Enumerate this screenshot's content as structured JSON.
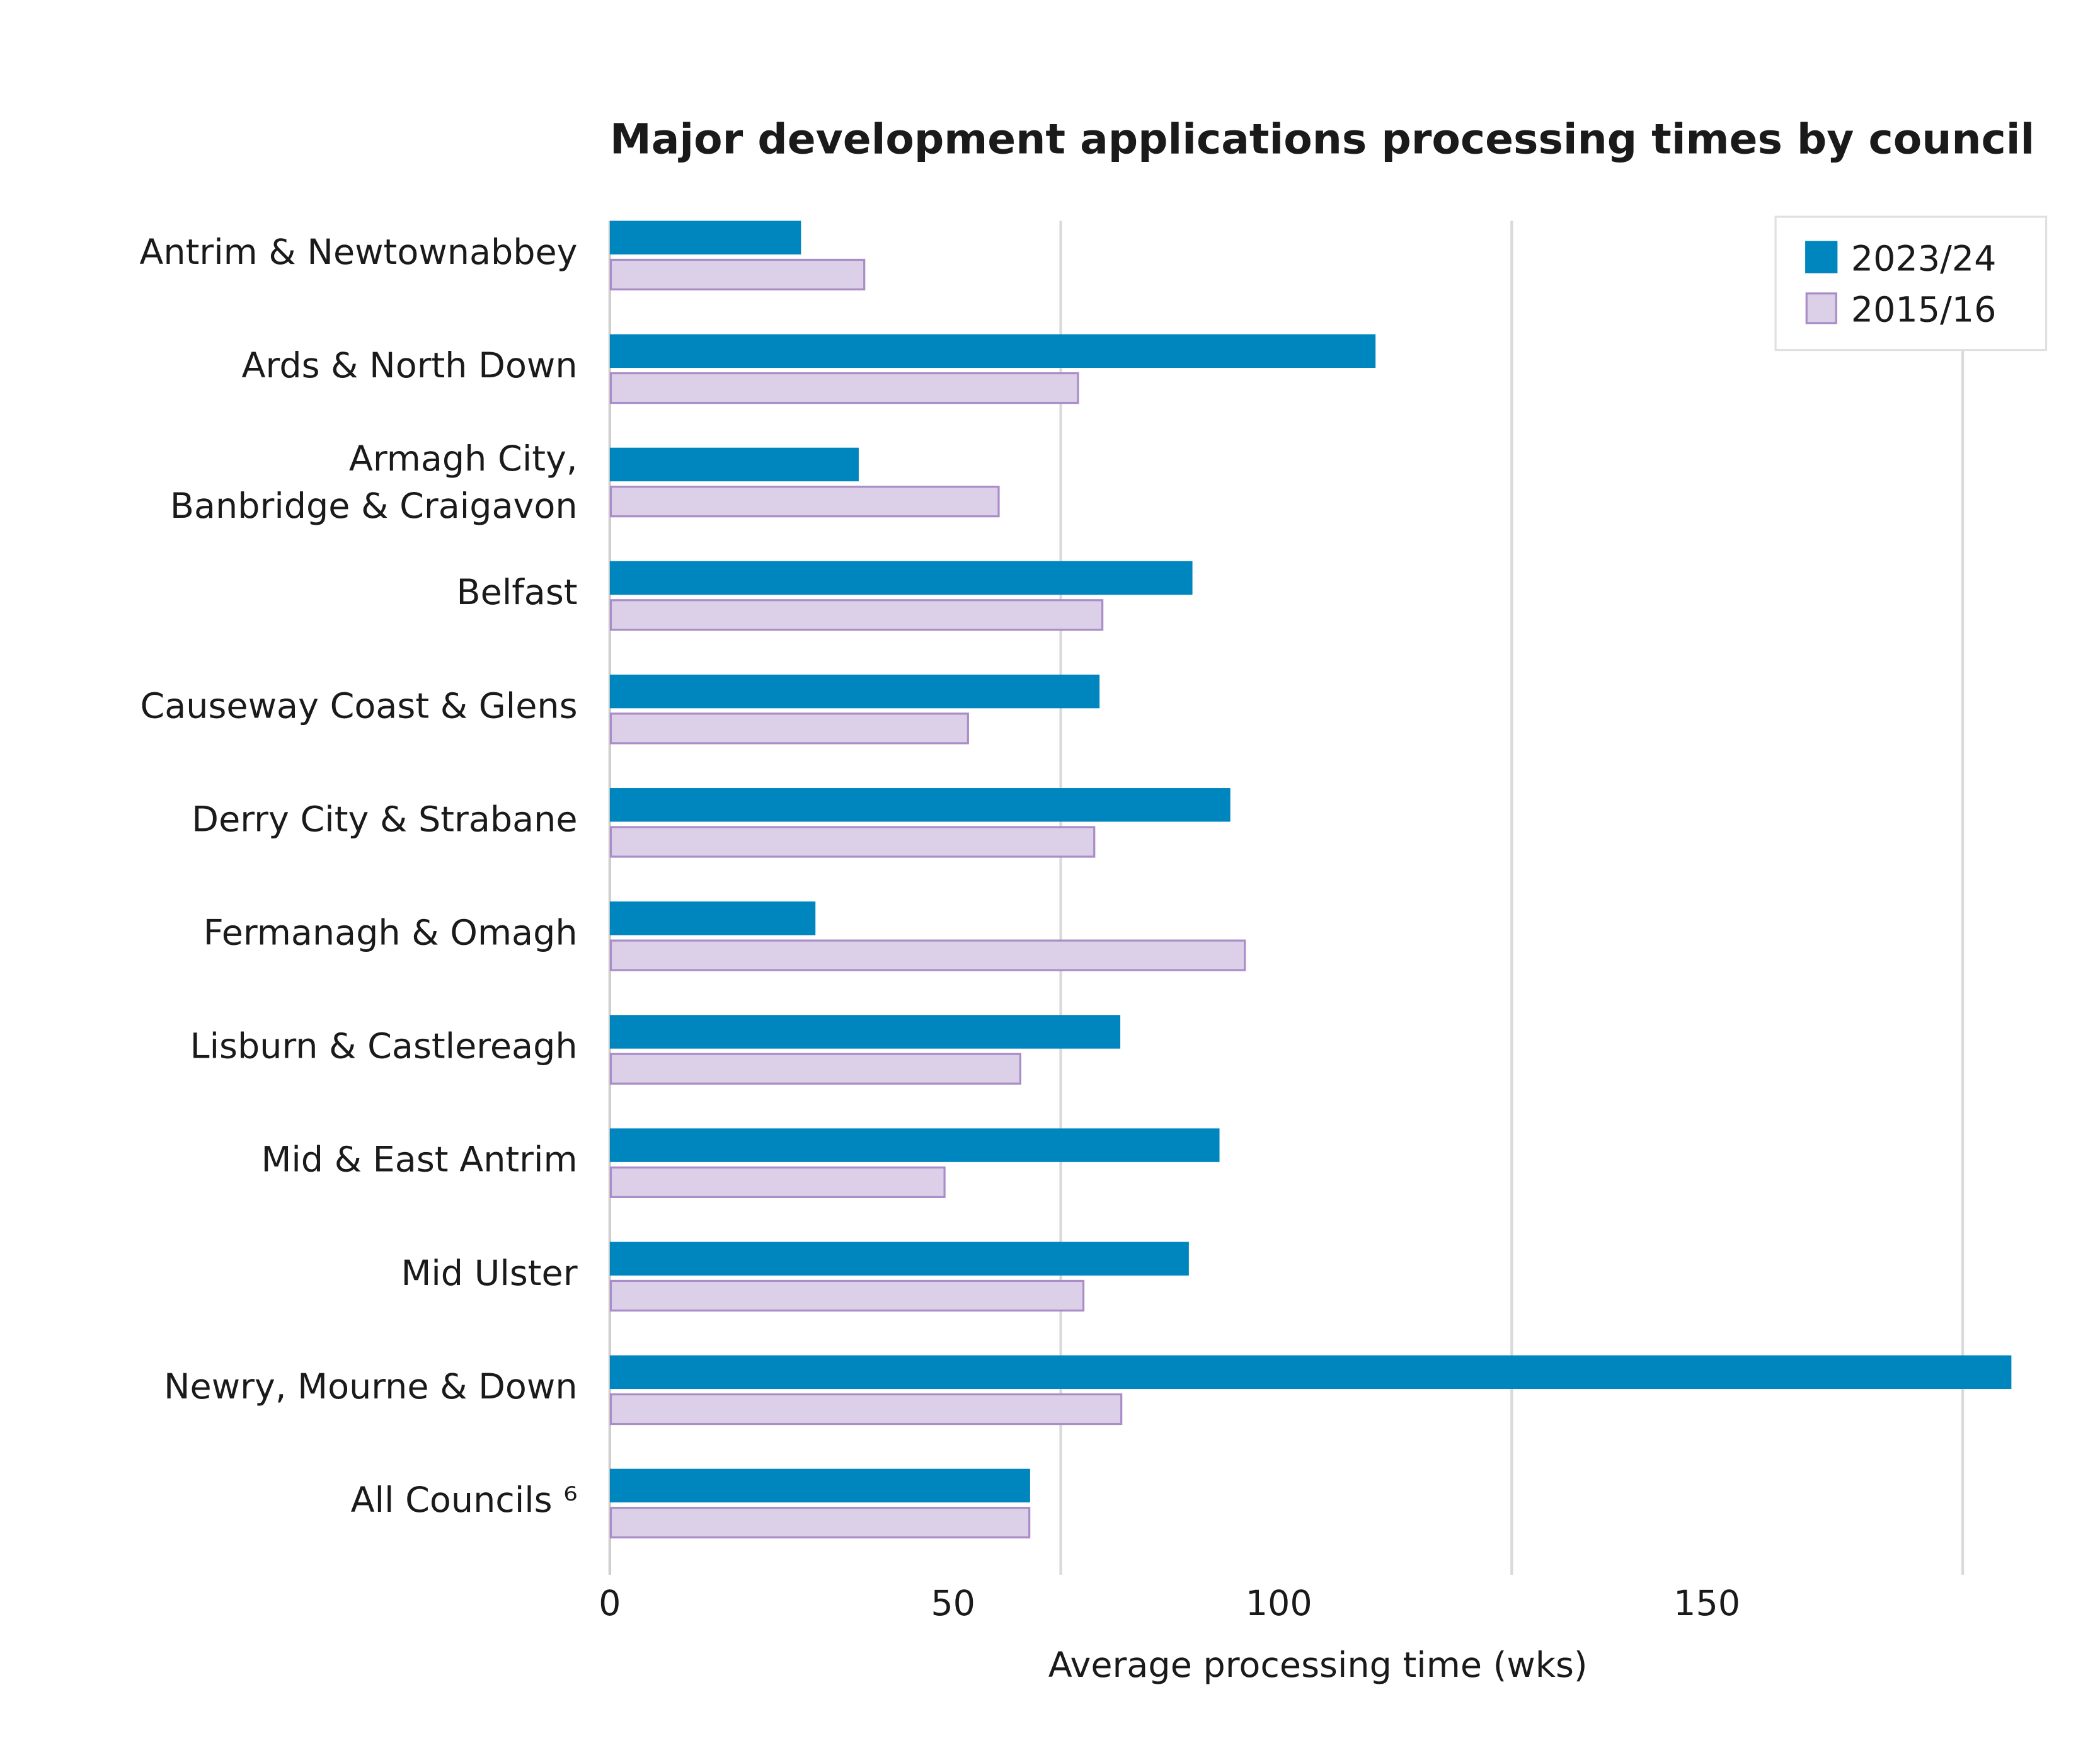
{
  "chart_data": {
    "type": "bar",
    "orientation": "horizontal",
    "title": "Major development applications processing times by council",
    "xlabel": "Average processing time (wks)",
    "ylabel": "",
    "xlim": [
      0,
      160
    ],
    "x_tick_labels": [
      "0",
      "50",
      "100",
      "150"
    ],
    "grid": "vertical",
    "legend_position": "top-right",
    "categories": [
      "Antrim & Newtownabbey",
      "Ards & North Down",
      "Armagh City,\nBanbridge & Craigavon",
      "Belfast",
      "Causeway Coast & Glens",
      "Derry City & Strabane",
      "Fermanagh & Omagh",
      "Lisburn & Castlereagh",
      "Mid & East Antrim",
      "Mid Ulster",
      "Newry, Mourne & Down",
      "All Councils ⁶"
    ],
    "series": [
      {
        "name": "2023/24",
        "color": "#0086be",
        "values": [
          21.2,
          84.9,
          27.6,
          64.6,
          54.3,
          68.8,
          22.8,
          56.6,
          67.6,
          64.2,
          155.4,
          46.6
        ]
      },
      {
        "name": "2015/16",
        "color": "#dbd0e7",
        "stroke": "#a98cc8",
        "values": [
          28.1,
          51.8,
          43.0,
          54.5,
          39.6,
          53.6,
          70.3,
          45.4,
          37.0,
          52.4,
          56.6,
          46.4
        ]
      }
    ]
  }
}
